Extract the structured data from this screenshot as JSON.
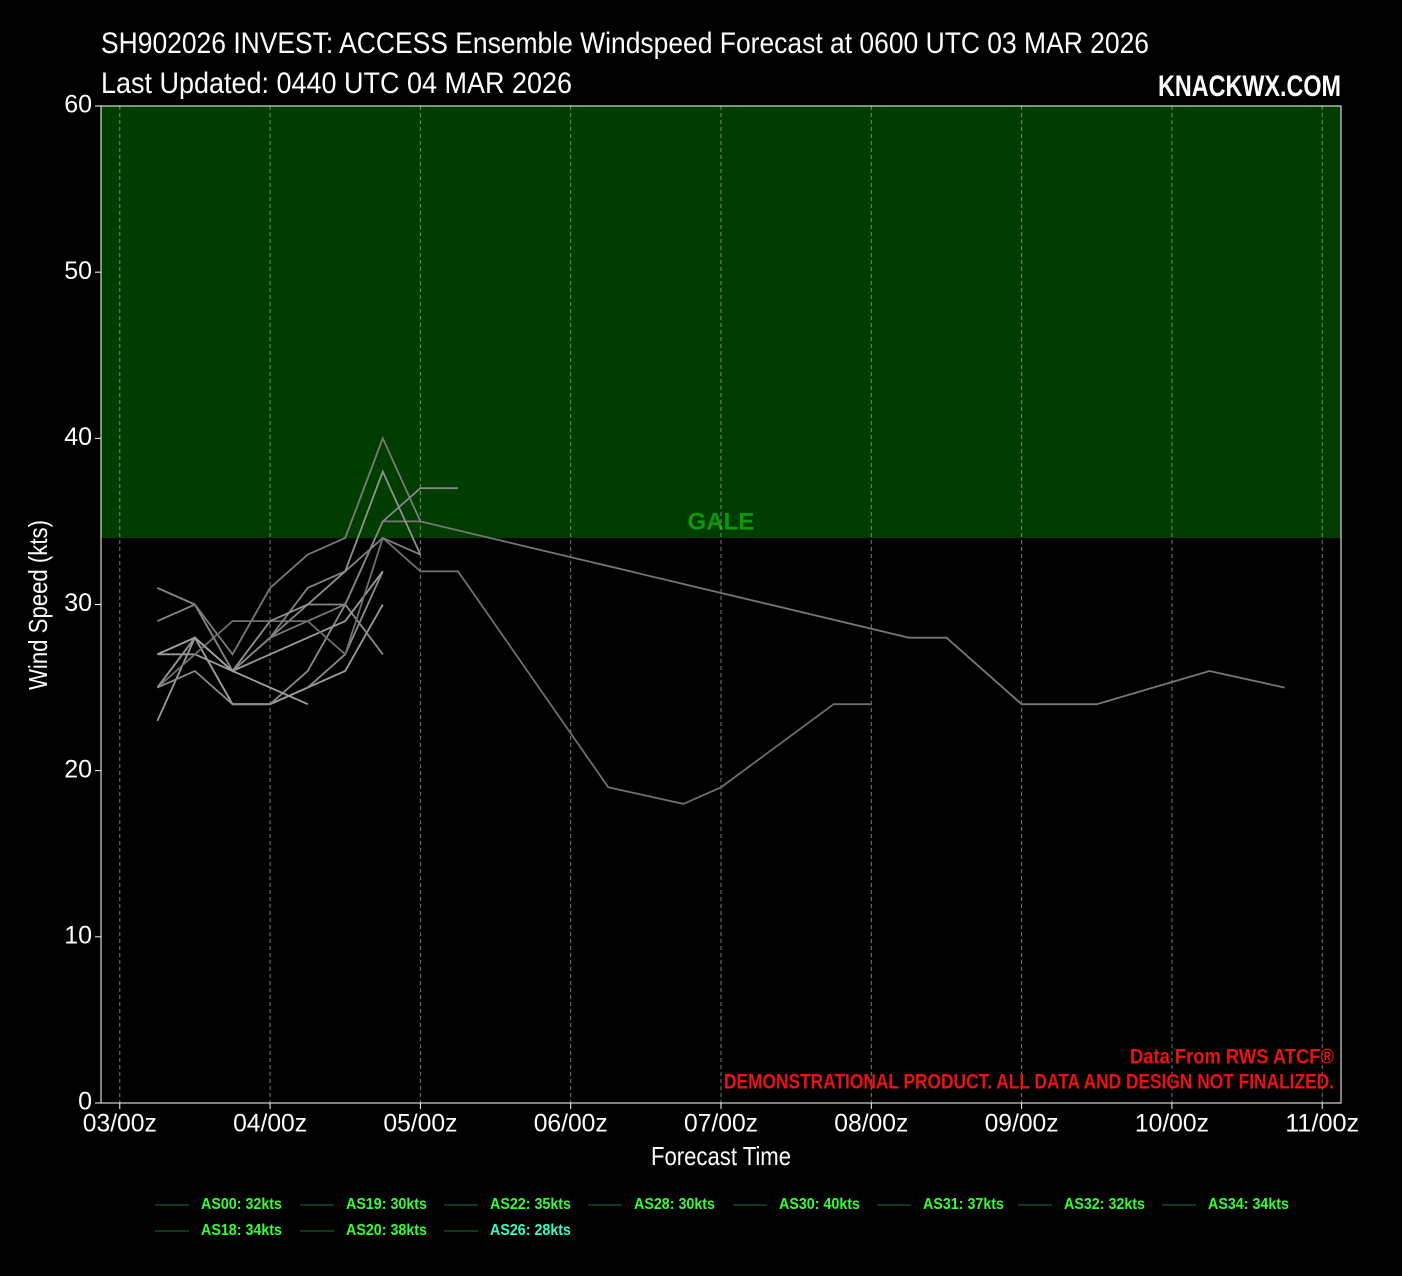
{
  "chart_data": {
    "type": "line",
    "title": "SH902026 INVEST: ACCESS Ensemble Windspeed Forecast at 0600 UTC 03 MAR 2026",
    "subtitle": "Last Updated: 0440 UTC 04 MAR 2026",
    "brand": "KNACKWX.COM",
    "x_label": "Forecast Time",
    "y_label": "Wind Speed (kts)",
    "source_note": "Data From RWS ATCF®",
    "disclaimer": "DEMONSTRATIONAL PRODUCT. ALL DATA AND DESIGN NOT FINALIZED.",
    "xlim": [
      -3,
      195
    ],
    "ylim": [
      0,
      60
    ],
    "xticks": [
      {
        "value": 0,
        "label": "03/00z"
      },
      {
        "value": 24,
        "label": "04/00z"
      },
      {
        "value": 48,
        "label": "05/00z"
      },
      {
        "value": 72,
        "label": "06/00z"
      },
      {
        "value": 96,
        "label": "07/00z"
      },
      {
        "value": 120,
        "label": "08/00z"
      },
      {
        "value": 144,
        "label": "09/00z"
      },
      {
        "value": 168,
        "label": "10/00z"
      },
      {
        "value": 192,
        "label": "11/00z"
      }
    ],
    "yticks": [
      0,
      10,
      20,
      30,
      40,
      50,
      60
    ],
    "grid": "x",
    "bands": [
      {
        "label": "GALE",
        "from": 34,
        "to": 60,
        "color": "#013d01",
        "label_color": "#0a9a0a"
      }
    ],
    "legend_line_color": "#0f4a1f",
    "series": [
      {
        "name": "AS00: 32kts",
        "color": "#8a8a8a",
        "label_color": "#33ff33",
        "x": [
          6,
          12,
          18,
          24,
          30,
          36,
          42
        ],
        "values": [
          25,
          28,
          24,
          24,
          25,
          27,
          32
        ]
      },
      {
        "name": "AS19: 30kts",
        "color": "#9a9a9a",
        "label_color": "#33ff33",
        "x": [
          6,
          12,
          18,
          24,
          30,
          36,
          42
        ],
        "values": [
          23,
          28,
          24,
          24,
          25,
          26,
          30
        ]
      },
      {
        "name": "AS22: 35kts",
        "color": "#777777",
        "label_color": "#33ff33",
        "x": [
          6,
          12,
          18,
          24,
          30,
          36,
          42,
          48,
          126,
          132,
          144,
          156,
          174,
          186
        ],
        "values": [
          27,
          28,
          26,
          28,
          29,
          30,
          35,
          35,
          28,
          28,
          24,
          24,
          26,
          25
        ]
      },
      {
        "name": "AS28: 30kts",
        "color": "#8a8a8a",
        "label_color": "#33ff33",
        "x": [
          6,
          12,
          18,
          24,
          30,
          36,
          42
        ],
        "values": [
          25,
          26,
          24,
          24,
          26,
          30,
          27
        ]
      },
      {
        "name": "AS30: 40kts",
        "color": "#7a7a7a",
        "label_color": "#33ff33",
        "x": [
          6,
          12,
          18,
          24,
          30,
          36,
          42,
          48
        ],
        "values": [
          31,
          30,
          27,
          31,
          33,
          34,
          40,
          35
        ]
      },
      {
        "name": "AS31: 37kts",
        "color": "#858585",
        "label_color": "#33ff33",
        "x": [
          6,
          12,
          18,
          24,
          30,
          36,
          42,
          48,
          54
        ],
        "values": [
          29,
          30,
          26,
          28,
          30,
          30,
          35,
          37,
          37
        ]
      },
      {
        "name": "AS32: 32kts",
        "color": "#9a9a9a",
        "label_color": "#33ff33",
        "x": [
          6,
          12,
          18,
          24,
          30,
          36,
          42
        ],
        "values": [
          27,
          27,
          26,
          27,
          28,
          29,
          32
        ]
      },
      {
        "name": "AS34: 34kts",
        "color": "#6e6e6e",
        "label_color": "#33ff33",
        "x": [
          6,
          12,
          18,
          24,
          30,
          36,
          42,
          48,
          54,
          78,
          90,
          96,
          114,
          120
        ],
        "values": [
          25,
          27,
          29,
          29,
          29,
          27,
          34,
          32,
          32,
          19,
          18,
          19,
          24,
          24
        ]
      },
      {
        "name": "AS18: 34kts",
        "color": "#808080",
        "label_color": "#33ff33",
        "x": [
          6,
          12,
          18,
          24,
          30,
          36,
          42,
          48
        ],
        "values": [
          31,
          30,
          26,
          28,
          31,
          32,
          34,
          33
        ]
      },
      {
        "name": "AS20: 38kts",
        "color": "#909090",
        "label_color": "#33ff33",
        "x": [
          6,
          12,
          18,
          24,
          30,
          36,
          42,
          48
        ],
        "values": [
          25,
          28,
          26,
          29,
          30,
          32,
          38,
          33
        ]
      },
      {
        "name": "AS26: 28kts",
        "color": "#a0a0a0",
        "label_color": "#33ffcc",
        "x": [
          6,
          12,
          18,
          24,
          30
        ],
        "values": [
          27,
          28,
          26,
          25,
          24
        ]
      }
    ]
  }
}
